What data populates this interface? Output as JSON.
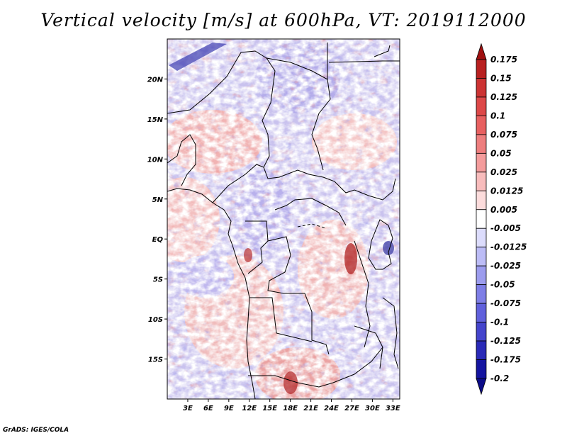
{
  "title": "Vertical velocity [m/s] at 600hPa, VT: 2019112000",
  "credit": "GrADS: IGES/COLA",
  "map": {
    "lon_range": [
      0,
      34
    ],
    "lat_range": [
      -20,
      25
    ],
    "lat_ticks": [
      {
        "value": 20,
        "label": "20N"
      },
      {
        "value": 15,
        "label": "15N"
      },
      {
        "value": 10,
        "label": "10N"
      },
      {
        "value": 5,
        "label": "5N"
      },
      {
        "value": 0,
        "label": "EQ"
      },
      {
        "value": -5,
        "label": "5S"
      },
      {
        "value": -10,
        "label": "10S"
      },
      {
        "value": -15,
        "label": "15S"
      }
    ],
    "lon_ticks": [
      {
        "value": 3,
        "label": "3E"
      },
      {
        "value": 6,
        "label": "6E"
      },
      {
        "value": 9,
        "label": "9E"
      },
      {
        "value": 12,
        "label": "12E"
      },
      {
        "value": 15,
        "label": "15E"
      },
      {
        "value": 18,
        "label": "18E"
      },
      {
        "value": 21,
        "label": "21E"
      },
      {
        "value": 24,
        "label": "24E"
      },
      {
        "value": 27,
        "label": "27E"
      },
      {
        "value": 30,
        "label": "30E"
      },
      {
        "value": 33,
        "label": "33E"
      }
    ]
  },
  "colorbar": {
    "labels": [
      "0.175",
      "0.15",
      "0.125",
      "0.1",
      "0.075",
      "0.05",
      "0.025",
      "0.0125",
      "0.005",
      "-0.005",
      "-0.0125",
      "-0.025",
      "-0.05",
      "-0.075",
      "-0.1",
      "-0.125",
      "-0.175",
      "-0.2"
    ],
    "colors": [
      "#a01010",
      "#b82020",
      "#cc3333",
      "#dd4848",
      "#e86060",
      "#ee7e7e",
      "#f49c9c",
      "#f8bcbc",
      "#fcdcdc",
      "#ffffff",
      "#dcdcfc",
      "#bcbcf6",
      "#9c9cee",
      "#7e7ee6",
      "#6060dc",
      "#4444cc",
      "#2a2ab8",
      "#1414a0",
      "#0c0c88"
    ]
  }
}
